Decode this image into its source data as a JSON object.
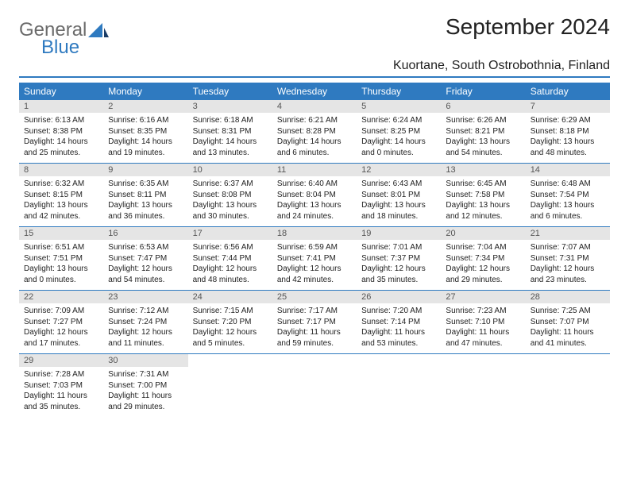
{
  "brand": {
    "word1": "General",
    "word2": "Blue",
    "color_gray": "#6b6b6b",
    "color_blue": "#2f7ac0"
  },
  "title": "September 2024",
  "location": "Kuortane, South Ostrobothnia, Finland",
  "colors": {
    "header_bg": "#2f7ac0",
    "header_fg": "#ffffff",
    "daynum_bg": "#e5e5e5",
    "text": "#222222",
    "rule": "#2f7ac0"
  },
  "day_names": [
    "Sunday",
    "Monday",
    "Tuesday",
    "Wednesday",
    "Thursday",
    "Friday",
    "Saturday"
  ],
  "weeks": [
    [
      {
        "n": "1",
        "sr": "Sunrise: 6:13 AM",
        "ss": "Sunset: 8:38 PM",
        "d1": "Daylight: 14 hours",
        "d2": "and 25 minutes."
      },
      {
        "n": "2",
        "sr": "Sunrise: 6:16 AM",
        "ss": "Sunset: 8:35 PM",
        "d1": "Daylight: 14 hours",
        "d2": "and 19 minutes."
      },
      {
        "n": "3",
        "sr": "Sunrise: 6:18 AM",
        "ss": "Sunset: 8:31 PM",
        "d1": "Daylight: 14 hours",
        "d2": "and 13 minutes."
      },
      {
        "n": "4",
        "sr": "Sunrise: 6:21 AM",
        "ss": "Sunset: 8:28 PM",
        "d1": "Daylight: 14 hours",
        "d2": "and 6 minutes."
      },
      {
        "n": "5",
        "sr": "Sunrise: 6:24 AM",
        "ss": "Sunset: 8:25 PM",
        "d1": "Daylight: 14 hours",
        "d2": "and 0 minutes."
      },
      {
        "n": "6",
        "sr": "Sunrise: 6:26 AM",
        "ss": "Sunset: 8:21 PM",
        "d1": "Daylight: 13 hours",
        "d2": "and 54 minutes."
      },
      {
        "n": "7",
        "sr": "Sunrise: 6:29 AM",
        "ss": "Sunset: 8:18 PM",
        "d1": "Daylight: 13 hours",
        "d2": "and 48 minutes."
      }
    ],
    [
      {
        "n": "8",
        "sr": "Sunrise: 6:32 AM",
        "ss": "Sunset: 8:15 PM",
        "d1": "Daylight: 13 hours",
        "d2": "and 42 minutes."
      },
      {
        "n": "9",
        "sr": "Sunrise: 6:35 AM",
        "ss": "Sunset: 8:11 PM",
        "d1": "Daylight: 13 hours",
        "d2": "and 36 minutes."
      },
      {
        "n": "10",
        "sr": "Sunrise: 6:37 AM",
        "ss": "Sunset: 8:08 PM",
        "d1": "Daylight: 13 hours",
        "d2": "and 30 minutes."
      },
      {
        "n": "11",
        "sr": "Sunrise: 6:40 AM",
        "ss": "Sunset: 8:04 PM",
        "d1": "Daylight: 13 hours",
        "d2": "and 24 minutes."
      },
      {
        "n": "12",
        "sr": "Sunrise: 6:43 AM",
        "ss": "Sunset: 8:01 PM",
        "d1": "Daylight: 13 hours",
        "d2": "and 18 minutes."
      },
      {
        "n": "13",
        "sr": "Sunrise: 6:45 AM",
        "ss": "Sunset: 7:58 PM",
        "d1": "Daylight: 13 hours",
        "d2": "and 12 minutes."
      },
      {
        "n": "14",
        "sr": "Sunrise: 6:48 AM",
        "ss": "Sunset: 7:54 PM",
        "d1": "Daylight: 13 hours",
        "d2": "and 6 minutes."
      }
    ],
    [
      {
        "n": "15",
        "sr": "Sunrise: 6:51 AM",
        "ss": "Sunset: 7:51 PM",
        "d1": "Daylight: 13 hours",
        "d2": "and 0 minutes."
      },
      {
        "n": "16",
        "sr": "Sunrise: 6:53 AM",
        "ss": "Sunset: 7:47 PM",
        "d1": "Daylight: 12 hours",
        "d2": "and 54 minutes."
      },
      {
        "n": "17",
        "sr": "Sunrise: 6:56 AM",
        "ss": "Sunset: 7:44 PM",
        "d1": "Daylight: 12 hours",
        "d2": "and 48 minutes."
      },
      {
        "n": "18",
        "sr": "Sunrise: 6:59 AM",
        "ss": "Sunset: 7:41 PM",
        "d1": "Daylight: 12 hours",
        "d2": "and 42 minutes."
      },
      {
        "n": "19",
        "sr": "Sunrise: 7:01 AM",
        "ss": "Sunset: 7:37 PM",
        "d1": "Daylight: 12 hours",
        "d2": "and 35 minutes."
      },
      {
        "n": "20",
        "sr": "Sunrise: 7:04 AM",
        "ss": "Sunset: 7:34 PM",
        "d1": "Daylight: 12 hours",
        "d2": "and 29 minutes."
      },
      {
        "n": "21",
        "sr": "Sunrise: 7:07 AM",
        "ss": "Sunset: 7:31 PM",
        "d1": "Daylight: 12 hours",
        "d2": "and 23 minutes."
      }
    ],
    [
      {
        "n": "22",
        "sr": "Sunrise: 7:09 AM",
        "ss": "Sunset: 7:27 PM",
        "d1": "Daylight: 12 hours",
        "d2": "and 17 minutes."
      },
      {
        "n": "23",
        "sr": "Sunrise: 7:12 AM",
        "ss": "Sunset: 7:24 PM",
        "d1": "Daylight: 12 hours",
        "d2": "and 11 minutes."
      },
      {
        "n": "24",
        "sr": "Sunrise: 7:15 AM",
        "ss": "Sunset: 7:20 PM",
        "d1": "Daylight: 12 hours",
        "d2": "and 5 minutes."
      },
      {
        "n": "25",
        "sr": "Sunrise: 7:17 AM",
        "ss": "Sunset: 7:17 PM",
        "d1": "Daylight: 11 hours",
        "d2": "and 59 minutes."
      },
      {
        "n": "26",
        "sr": "Sunrise: 7:20 AM",
        "ss": "Sunset: 7:14 PM",
        "d1": "Daylight: 11 hours",
        "d2": "and 53 minutes."
      },
      {
        "n": "27",
        "sr": "Sunrise: 7:23 AM",
        "ss": "Sunset: 7:10 PM",
        "d1": "Daylight: 11 hours",
        "d2": "and 47 minutes."
      },
      {
        "n": "28",
        "sr": "Sunrise: 7:25 AM",
        "ss": "Sunset: 7:07 PM",
        "d1": "Daylight: 11 hours",
        "d2": "and 41 minutes."
      }
    ],
    [
      {
        "n": "29",
        "sr": "Sunrise: 7:28 AM",
        "ss": "Sunset: 7:03 PM",
        "d1": "Daylight: 11 hours",
        "d2": "and 35 minutes."
      },
      {
        "n": "30",
        "sr": "Sunrise: 7:31 AM",
        "ss": "Sunset: 7:00 PM",
        "d1": "Daylight: 11 hours",
        "d2": "and 29 minutes."
      },
      null,
      null,
      null,
      null,
      null
    ]
  ]
}
